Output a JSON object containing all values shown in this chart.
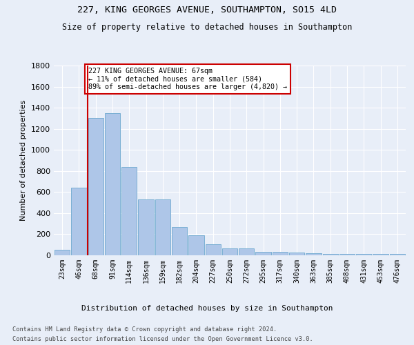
{
  "title1": "227, KING GEORGES AVENUE, SOUTHAMPTON, SO15 4LD",
  "title2": "Size of property relative to detached houses in Southampton",
  "xlabel": "Distribution of detached houses by size in Southampton",
  "ylabel": "Number of detached properties",
  "categories": [
    "23sqm",
    "46sqm",
    "68sqm",
    "91sqm",
    "114sqm",
    "136sqm",
    "159sqm",
    "182sqm",
    "204sqm",
    "227sqm",
    "250sqm",
    "272sqm",
    "295sqm",
    "317sqm",
    "340sqm",
    "363sqm",
    "385sqm",
    "408sqm",
    "431sqm",
    "453sqm",
    "476sqm"
  ],
  "values": [
    50,
    640,
    1300,
    1350,
    840,
    530,
    530,
    270,
    190,
    105,
    65,
    65,
    30,
    30,
    25,
    20,
    15,
    12,
    10,
    10,
    10
  ],
  "bar_color": "#aec6e8",
  "bar_edge_color": "#7aafd4",
  "background_color": "#e8eef8",
  "grid_color": "#ffffff",
  "vline_x": 2.0,
  "vline_color": "#cc0000",
  "annotation_text": "227 KING GEORGES AVENUE: 67sqm\n← 11% of detached houses are smaller (584)\n89% of semi-detached houses are larger (4,820) →",
  "annotation_box_facecolor": "#ffffff",
  "annotation_box_edgecolor": "#cc0000",
  "footer1": "Contains HM Land Registry data © Crown copyright and database right 2024.",
  "footer2": "Contains public sector information licensed under the Open Government Licence v3.0.",
  "ylim": [
    0,
    1800
  ],
  "yticks": [
    0,
    200,
    400,
    600,
    800,
    1000,
    1200,
    1400,
    1600,
    1800
  ]
}
